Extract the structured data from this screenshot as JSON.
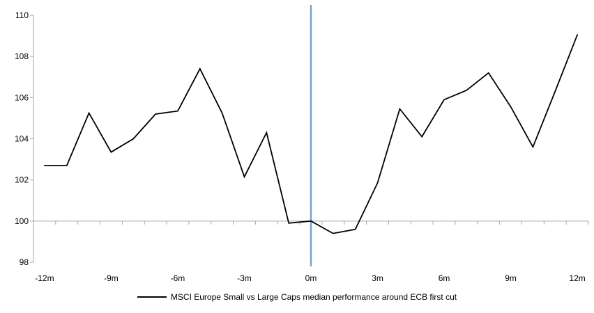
{
  "chart_data": {
    "type": "line",
    "title": "",
    "x": [
      -12,
      -11,
      -10,
      -9,
      -8,
      -7,
      -6,
      -5,
      -4,
      -3,
      -2,
      -1,
      0,
      1,
      2,
      3,
      4,
      5,
      6,
      7,
      8,
      9,
      10,
      11,
      12
    ],
    "series": [
      {
        "name": "MSCI Europe Small vs Large Caps median performance around ECB first cut",
        "color": "#000000",
        "values": [
          102.7,
          102.7,
          105.25,
          103.35,
          104.0,
          105.2,
          105.35,
          107.4,
          105.25,
          102.15,
          104.3,
          99.9,
          100.0,
          99.4,
          99.6,
          101.85,
          105.45,
          104.1,
          105.9,
          106.35,
          107.2,
          105.55,
          103.6,
          106.3,
          109.05
        ]
      }
    ],
    "x_axis": {
      "tick_label_positions": [
        -12,
        -9,
        -6,
        -3,
        0,
        3,
        6,
        9,
        12
      ],
      "tick_labels": [
        "-12m",
        "-9m",
        "-6m",
        "-3m",
        "0m",
        "3m",
        "6m",
        "9m",
        "12m"
      ],
      "axis_crosses_at": 100,
      "minor_ticks": "every month"
    },
    "y_axis": {
      "range": [
        98,
        110
      ],
      "ticks": [
        98,
        100,
        102,
        104,
        106,
        108,
        110
      ],
      "tick_labels": [
        "98",
        "100",
        "102",
        "104",
        "106",
        "108",
        "110"
      ]
    },
    "legend": {
      "position": "bottom-center",
      "entries": [
        {
          "label": "MSCI Europe Small vs Large Caps median performance around ECB first cut",
          "color": "#000000"
        }
      ]
    },
    "annotations": {
      "event_line": {
        "x": 0,
        "color": "#74A3CF",
        "meaning": "ECB first cut (0m)"
      }
    },
    "grid": "none (only horizontal axis line at 100)",
    "colors": {
      "series": "#000000",
      "event_line": "#74A3CF",
      "axis": "#A6A6A6",
      "text": "#000000",
      "background": "#FFFFFF"
    }
  }
}
